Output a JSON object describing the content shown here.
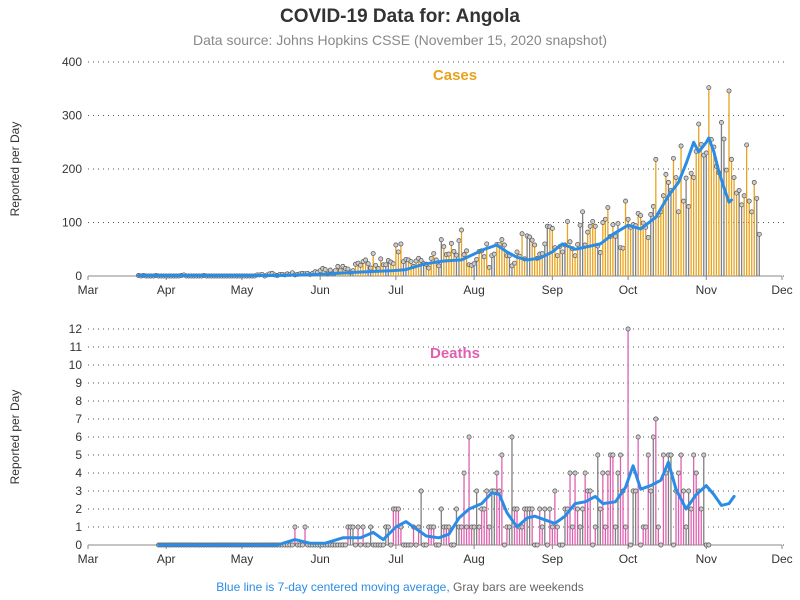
{
  "title": "COVID-19 Data for: Angola",
  "subtitle": "Data source: Johns Hopkins CSSE (November 15, 2020 snapshot)",
  "footnote": {
    "blue_text": "Blue line is 7-day centered moving average,",
    "gray_text": "Gray bars are weekends"
  },
  "colors": {
    "cases": "#e8a21c",
    "deaths": "#e060b0",
    "weekend": "#808080",
    "moving_average": "#2b8ce6",
    "marker_fill": "#cccccc"
  },
  "chart_data": [
    {
      "type": "bar",
      "title": "Cases",
      "xlabel": "",
      "ylabel": "Reported per Day",
      "x_ticks": [
        "Mar",
        "Apr",
        "May",
        "Jun",
        "Jul",
        "Aug",
        "Sep",
        "Oct",
        "Nov",
        "Dec"
      ],
      "y_ticks": [
        0,
        100,
        200,
        300,
        400
      ],
      "ylim": [
        0,
        400
      ],
      "x_range": [
        "2020-03-01",
        "2020-12-01"
      ],
      "grid": true,
      "series": [
        {
          "name": "Cases",
          "start_date": "2020-03-21",
          "values": [
            1,
            0,
            1,
            0,
            0,
            0,
            0,
            1,
            0,
            0,
            0,
            0,
            0,
            0,
            0,
            0,
            0,
            1,
            2,
            0,
            0,
            0,
            0,
            0,
            0,
            0,
            1,
            0,
            0,
            0,
            0,
            0,
            0,
            0,
            0,
            0,
            0,
            0,
            0,
            0,
            0,
            0,
            0,
            0,
            0,
            0,
            0,
            2,
            2,
            3,
            0,
            2,
            4,
            5,
            2,
            1,
            3,
            3,
            2,
            4,
            3,
            6,
            2,
            3,
            4,
            5,
            4,
            5,
            3,
            5,
            8,
            7,
            10,
            14,
            12,
            4,
            11,
            4,
            10,
            18,
            10,
            18,
            14,
            13,
            7,
            10,
            22,
            24,
            20,
            27,
            30,
            23,
            15,
            42,
            20,
            14,
            32,
            21,
            21,
            29,
            26,
            23,
            58,
            45,
            60,
            27,
            31,
            30,
            27,
            18,
            28,
            33,
            29,
            23,
            22,
            15,
            33,
            42,
            30,
            19,
            68,
            55,
            40,
            41,
            61,
            46,
            39,
            66,
            86,
            40,
            47,
            21,
            20,
            23,
            31,
            46,
            47,
            36,
            60,
            16,
            38,
            41,
            59,
            59,
            68,
            58,
            38,
            38,
            19,
            24,
            45,
            37,
            79,
            32,
            75,
            73,
            67,
            58,
            33,
            41,
            42,
            60,
            93,
            92,
            89,
            53,
            38,
            55,
            45,
            58,
            102,
            64,
            51,
            38,
            59,
            95,
            120,
            58,
            82,
            93,
            102,
            93,
            56,
            44,
            100,
            106,
            128,
            74,
            96,
            74,
            98,
            53,
            52,
            140,
            106,
            91,
            96,
            94,
            117,
            113,
            99,
            91,
            72,
            115,
            130,
            218,
            114,
            120,
            150,
            190,
            175,
            160,
            220,
            184,
            120,
            243,
            140,
            183,
            130,
            192,
            184,
            233,
            284,
            246,
            226,
            230,
            352,
            255,
            241,
            205,
            193,
            287,
            256,
            198,
            346,
            218,
            184,
            155,
            160,
            133,
            150,
            245,
            140,
            120,
            175,
            145,
            78
          ]
        },
        {
          "name": "7-day centered moving average",
          "points": [
            [
              "2020-03-21",
              1
            ],
            [
              "2020-04-15",
              1
            ],
            [
              "2020-05-15",
              1
            ],
            [
              "2020-06-01",
              3
            ],
            [
              "2020-06-15",
              7
            ],
            [
              "2020-06-30",
              10
            ],
            [
              "2020-07-05",
              12
            ],
            [
              "2020-07-12",
              22
            ],
            [
              "2020-07-20",
              28
            ],
            [
              "2020-07-27",
              30
            ],
            [
              "2020-08-05",
              50
            ],
            [
              "2020-08-10",
              58
            ],
            [
              "2020-08-14",
              45
            ],
            [
              "2020-08-18",
              35
            ],
            [
              "2020-08-22",
              30
            ],
            [
              "2020-08-27",
              33
            ],
            [
              "2020-09-01",
              45
            ],
            [
              "2020-09-05",
              60
            ],
            [
              "2020-09-10",
              50
            ],
            [
              "2020-09-15",
              55
            ],
            [
              "2020-09-20",
              60
            ],
            [
              "2020-09-25",
              78
            ],
            [
              "2020-10-01",
              95
            ],
            [
              "2020-10-06",
              88
            ],
            [
              "2020-10-12",
              110
            ],
            [
              "2020-10-17",
              150
            ],
            [
              "2020-10-21",
              175
            ],
            [
              "2020-10-24",
              210
            ],
            [
              "2020-10-27",
              250
            ],
            [
              "2020-10-29",
              232
            ],
            [
              "2020-11-01",
              250
            ],
            [
              "2020-11-02",
              258
            ],
            [
              "2020-11-04",
              232
            ],
            [
              "2020-11-06",
              195
            ],
            [
              "2020-11-08",
              165
            ],
            [
              "2020-11-10",
              138
            ],
            [
              "2020-11-11",
              142
            ]
          ]
        }
      ]
    },
    {
      "type": "bar",
      "title": "Deaths",
      "xlabel": "",
      "ylabel": "Reported per Day",
      "x_ticks": [
        "Mar",
        "Apr",
        "May",
        "Jun",
        "Jul",
        "Aug",
        "Sep",
        "Oct",
        "Nov",
        "Dec"
      ],
      "y_ticks": [
        0,
        1,
        2,
        3,
        4,
        5,
        6,
        7,
        8,
        9,
        10,
        11,
        12
      ],
      "ylim": [
        0,
        12
      ],
      "x_range": [
        "2020-03-01",
        "2020-12-01"
      ],
      "grid": true,
      "series": [
        {
          "name": "Deaths",
          "start_date": "2020-03-29",
          "values": [
            0,
            0,
            0,
            0,
            0,
            0,
            0,
            0,
            0,
            0,
            0,
            0,
            0,
            0,
            0,
            0,
            0,
            0,
            0,
            0,
            0,
            0,
            0,
            0,
            0,
            0,
            0,
            0,
            0,
            0,
            0,
            0,
            0,
            0,
            0,
            0,
            0,
            0,
            0,
            0,
            0,
            0,
            0,
            0,
            0,
            0,
            0,
            0,
            0,
            0,
            0,
            0,
            0,
            0,
            1,
            0,
            0,
            0,
            1,
            0,
            0,
            0,
            0,
            0,
            0,
            0,
            0,
            0,
            0,
            0,
            0,
            0,
            0,
            0,
            0,
            1,
            1,
            1,
            0,
            1,
            0,
            1,
            0,
            0,
            1,
            0,
            0,
            0,
            0,
            0,
            1,
            1,
            0,
            2,
            2,
            2,
            1,
            0,
            0,
            0,
            0,
            1,
            0,
            1,
            3,
            0,
            0,
            1,
            1,
            1,
            0,
            0,
            2,
            1,
            1,
            1,
            0,
            0,
            2,
            1,
            1,
            4,
            1,
            6,
            1,
            1,
            3,
            1,
            2,
            2,
            3,
            1,
            3,
            3,
            4,
            3,
            5,
            0,
            1,
            1,
            6,
            2,
            2,
            1,
            1,
            2,
            2,
            2,
            2,
            0,
            0,
            2,
            1,
            2,
            0,
            2,
            1,
            3,
            1,
            0,
            0,
            2,
            2,
            4,
            1,
            4,
            2,
            1,
            2,
            4,
            3,
            3,
            0,
            1,
            5,
            2,
            4,
            1,
            4,
            5,
            5,
            1,
            4,
            5,
            3,
            1,
            12,
            0,
            3,
            3,
            6,
            0,
            1,
            1,
            5,
            3,
            6,
            7,
            1,
            0,
            5,
            4,
            5,
            5,
            0,
            3,
            4,
            5,
            3,
            1,
            3,
            2,
            5,
            4,
            3,
            2,
            5,
            0,
            0
          ]
        },
        {
          "name": "7-day centered moving average",
          "points": [
            [
              "2020-03-29",
              0
            ],
            [
              "2020-05-15",
              0
            ],
            [
              "2020-05-22",
              0.3
            ],
            [
              "2020-05-28",
              0.1
            ],
            [
              "2020-06-03",
              0.1
            ],
            [
              "2020-06-10",
              0.4
            ],
            [
              "2020-06-17",
              0.4
            ],
            [
              "2020-06-22",
              0.7
            ],
            [
              "2020-06-26",
              0.3
            ],
            [
              "2020-07-01",
              1.0
            ],
            [
              "2020-07-05",
              1.3
            ],
            [
              "2020-07-09",
              0.9
            ],
            [
              "2020-07-13",
              0.5
            ],
            [
              "2020-07-18",
              0.4
            ],
            [
              "2020-07-22",
              0.6
            ],
            [
              "2020-07-26",
              1.5
            ],
            [
              "2020-07-30",
              2.0
            ],
            [
              "2020-08-04",
              2.3
            ],
            [
              "2020-08-08",
              2.9
            ],
            [
              "2020-08-11",
              2.8
            ],
            [
              "2020-08-14",
              1.8
            ],
            [
              "2020-08-18",
              1.0
            ],
            [
              "2020-08-22",
              1.5
            ],
            [
              "2020-08-25",
              1.6
            ],
            [
              "2020-08-29",
              1.4
            ],
            [
              "2020-09-02",
              1.2
            ],
            [
              "2020-09-06",
              1.6
            ],
            [
              "2020-09-10",
              2.3
            ],
            [
              "2020-09-14",
              2.4
            ],
            [
              "2020-09-18",
              2.7
            ],
            [
              "2020-09-21",
              2.3
            ],
            [
              "2020-09-26",
              2.4
            ],
            [
              "2020-09-30",
              3.2
            ],
            [
              "2020-10-03",
              4.4
            ],
            [
              "2020-10-06",
              3.1
            ],
            [
              "2020-10-10",
              3.3
            ],
            [
              "2020-10-14",
              3.6
            ],
            [
              "2020-10-17",
              4.6
            ],
            [
              "2020-10-20",
              3.1
            ],
            [
              "2020-10-24",
              2.0
            ],
            [
              "2020-10-28",
              2.8
            ],
            [
              "2020-11-01",
              3.3
            ],
            [
              "2020-11-04",
              2.8
            ],
            [
              "2020-11-07",
              2.2
            ],
            [
              "2020-11-10",
              2.3
            ],
            [
              "2020-11-12",
              2.7
            ]
          ]
        }
      ]
    }
  ]
}
